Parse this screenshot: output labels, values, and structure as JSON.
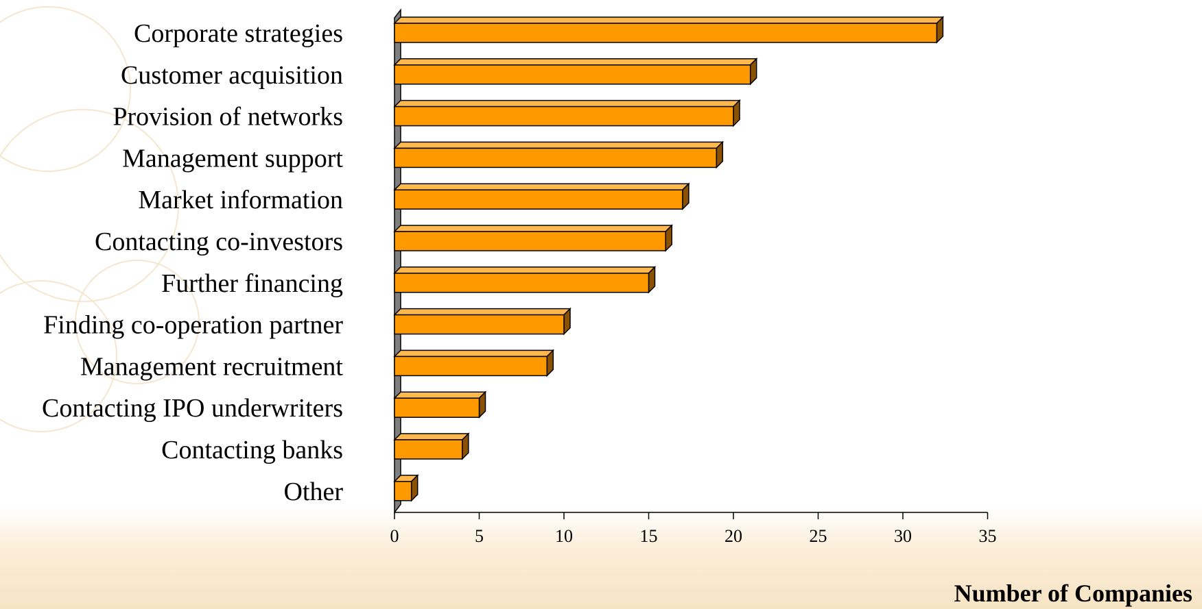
{
  "chart_data": {
    "type": "bar",
    "orientation": "horizontal",
    "style": "3d",
    "categories": [
      "Corporate strategies",
      "Customer acquisition",
      "Provision of networks",
      "Management support",
      "Market information",
      "Contacting co-investors",
      "Further financing",
      "Finding co-operation partner",
      "Management recruitment",
      "Contacting IPO underwriters",
      "Contacting banks",
      "Other"
    ],
    "values": [
      32,
      21,
      20,
      19,
      17,
      16,
      15,
      10,
      9,
      5,
      4,
      1
    ],
    "xlabel": "Number of Companies",
    "xlim": [
      0,
      35
    ],
    "xticks": [
      "0",
      "5",
      "10",
      "15",
      "20",
      "25",
      "30",
      "35"
    ],
    "grid": false,
    "legend": "none",
    "colors": {
      "bar_front": "#ff9900",
      "bar_top": "#ffb84d",
      "bar_side": "#8a5200",
      "wall": "#7f7f7f",
      "outline": "#000000"
    }
  }
}
